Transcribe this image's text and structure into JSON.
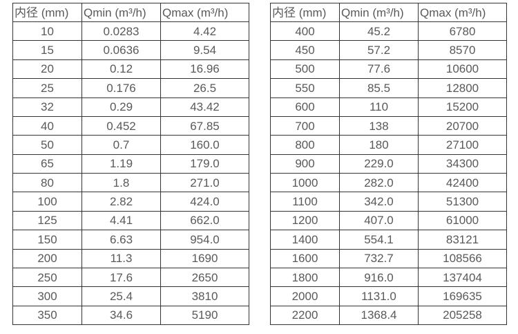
{
  "page": {
    "background": "#ffffff"
  },
  "colors": {
    "table_border": "#333333",
    "table_text": "#595959"
  },
  "tables": [
    {
      "name": "flow-table-small-diameters",
      "headers": [
        "内径 (mm)",
        "Qmin (m³/h)",
        "Qmax (m³/h)"
      ],
      "rows": [
        [
          "10",
          "0.0283",
          "4.42"
        ],
        [
          "15",
          "0.0636",
          "9.54"
        ],
        [
          "20",
          "0.12",
          "16.96"
        ],
        [
          "25",
          "0.176",
          "26.5"
        ],
        [
          "32",
          "0.29",
          "43.42"
        ],
        [
          "40",
          "0.452",
          "67.85"
        ],
        [
          "50",
          "0.7",
          "160.0"
        ],
        [
          "65",
          "1.19",
          "179.0"
        ],
        [
          "80",
          "1.8",
          "271.0"
        ],
        [
          "100",
          "2.82",
          "424.0"
        ],
        [
          "125",
          "4.41",
          "662.0"
        ],
        [
          "150",
          "6.63",
          "954.0"
        ],
        [
          "200",
          "11.3",
          "1690"
        ],
        [
          "250",
          "17.6",
          "2650"
        ],
        [
          "300",
          "25.4",
          "3810"
        ],
        [
          "350",
          "34.6",
          "5190"
        ]
      ]
    },
    {
      "name": "flow-table-large-diameters",
      "headers": [
        "内径 (mm)",
        "Qmin (m³/h)",
        "Qmax (m³/h)"
      ],
      "rows": [
        [
          "400",
          "45.2",
          "6780"
        ],
        [
          "450",
          "57.2",
          "8570"
        ],
        [
          "500",
          "77.6",
          "10600"
        ],
        [
          "550",
          "85.5",
          "12800"
        ],
        [
          "600",
          "110",
          "15200"
        ],
        [
          "700",
          "138",
          "20700"
        ],
        [
          "800",
          "180",
          "27100"
        ],
        [
          "900",
          "229.0",
          "34300"
        ],
        [
          "1000",
          "282.0",
          "42400"
        ],
        [
          "1100",
          "342.0",
          "51300"
        ],
        [
          "1200",
          "407.0",
          "61000"
        ],
        [
          "1400",
          "554.1",
          "83121"
        ],
        [
          "1600",
          "732.7",
          "108566"
        ],
        [
          "1800",
          "916.0",
          "137404"
        ],
        [
          "2000",
          "1131.0",
          "169635"
        ],
        [
          "2200",
          "1368.4",
          "205258"
        ]
      ]
    }
  ]
}
